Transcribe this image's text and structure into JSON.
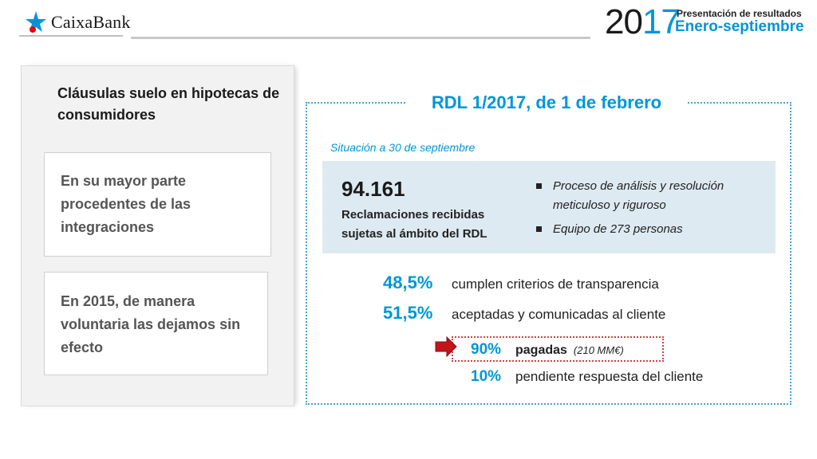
{
  "header": {
    "brand": "CaixaBank",
    "year_prefix": "20",
    "year_accent": "17",
    "presentation_title": "Presentación de resultados",
    "period": "Enero-septiembre",
    "accent_color": "#0096d6"
  },
  "left": {
    "title": "Cláusulas suelo en hipotecas de consumidores",
    "card1": "En su mayor parte procedentes de las integraciones",
    "card2": "En 2015, de manera voluntaria las dejamos sin efecto"
  },
  "right": {
    "title": "RDL 1/2017, de 1 de febrero",
    "situation": "Situación a 30 de septiembre",
    "claims_number": "94.161",
    "claims_label": "Reclamaciones recibidas sujetas al ámbito del RDL",
    "bullets": [
      "Proceso de análisis y resolución meticuloso y riguroso",
      "Equipo de 273 personas"
    ],
    "stats": [
      {
        "pct": "48,5%",
        "label": "cumplen criterios de transparencia"
      },
      {
        "pct": "51,5%",
        "label": "aceptadas y comunicadas al cliente"
      }
    ],
    "sub_stats": [
      {
        "pct": "90%",
        "label": "pagadas",
        "amount": "(210 MM€)"
      },
      {
        "pct": "10%",
        "label": "pendiente respuesta del cliente"
      }
    ]
  }
}
